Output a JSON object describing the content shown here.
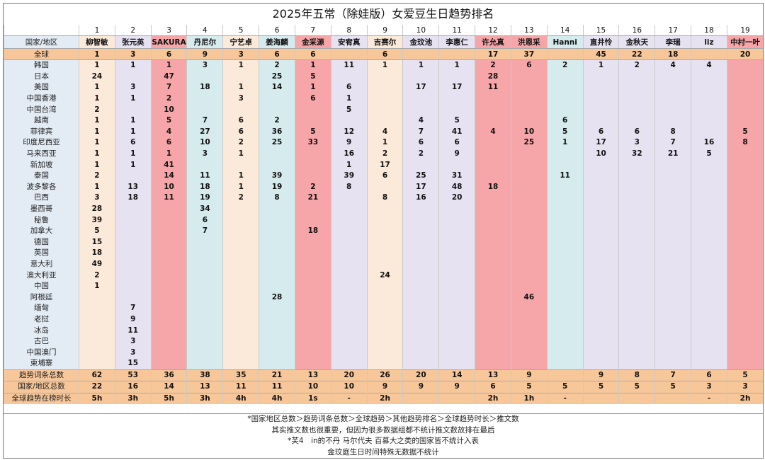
{
  "title": "2025年五常（除娃版）女爱豆生日趋势排名",
  "header_label": "国家/地区",
  "ranks": [
    "1",
    "2",
    "3",
    "4",
    "5",
    "6",
    "7",
    "8",
    "9",
    "10",
    "11",
    "12",
    "13",
    "14",
    "15",
    "16",
    "17",
    "18",
    "19"
  ],
  "idols": [
    "柳智敏",
    "张元英",
    "SAKURA",
    "丹尼尔",
    "宁艺卓",
    "姜海麟",
    "金采源",
    "安宥真",
    "吉赛尔",
    "金玟池",
    "李惠仁",
    "许允真",
    "洪恩采",
    "Hanni",
    "直井怜",
    "金秋天",
    "李瑞",
    "liz",
    "中村一叶"
  ],
  "colors": {
    "peach": "#fbe9d9",
    "lavender": "#e7e2f1",
    "pink": "#f6a5a8",
    "teal": "#d6ebee",
    "orange": "#f7c79a",
    "label_blue": "#e3ecf5"
  },
  "global_row": {
    "label": "全球",
    "values": [
      "1",
      "3",
      "6",
      "9",
      "3",
      "6",
      "6",
      "",
      "6",
      "",
      "",
      "17",
      "37",
      "",
      "45",
      "22",
      "18",
      "",
      "20"
    ]
  },
  "countries": [
    {
      "label": "韩国",
      "values": [
        "1",
        "1",
        "1",
        "3",
        "1",
        "2",
        "1",
        "11",
        "1",
        "1",
        "1",
        "2",
        "6",
        "2",
        "1",
        "2",
        "4",
        "4",
        ""
      ]
    },
    {
      "label": "日本",
      "values": [
        "24",
        "",
        "47",
        "",
        "",
        "25",
        "5",
        "",
        "",
        "",
        "",
        "28",
        "",
        "",
        "",
        "",
        "",
        "",
        ""
      ]
    },
    {
      "label": "美国",
      "values": [
        "1",
        "3",
        "7",
        "18",
        "1",
        "14",
        "1",
        "6",
        "",
        "17",
        "17",
        "11",
        "",
        "",
        "",
        "",
        "",
        "",
        ""
      ]
    },
    {
      "label": "中国香港",
      "values": [
        "1",
        "1",
        "2",
        "",
        "3",
        "",
        "6",
        "1",
        "",
        "",
        "",
        "",
        "",
        "",
        "",
        "",
        "",
        "",
        ""
      ]
    },
    {
      "label": "中国台湾",
      "values": [
        "2",
        "",
        "10",
        "",
        "",
        "",
        "",
        "5",
        "",
        "",
        "",
        "",
        "",
        "",
        "",
        "",
        "",
        "",
        ""
      ]
    },
    {
      "label": "越南",
      "values": [
        "1",
        "1",
        "5",
        "7",
        "6",
        "2",
        "",
        "",
        "",
        "4",
        "5",
        "",
        "",
        "6",
        "",
        "",
        "",
        "",
        ""
      ]
    },
    {
      "label": "菲律宾",
      "values": [
        "1",
        "1",
        "4",
        "27",
        "6",
        "36",
        "5",
        "12",
        "4",
        "7",
        "41",
        "4",
        "10",
        "5",
        "6",
        "6",
        "8",
        "",
        "5"
      ]
    },
    {
      "label": "印度尼西亚",
      "values": [
        "1",
        "6",
        "6",
        "10",
        "2",
        "25",
        "33",
        "9",
        "1",
        "6",
        "6",
        "",
        "25",
        "1",
        "17",
        "3",
        "7",
        "16",
        "8"
      ]
    },
    {
      "label": "马来西亚",
      "values": [
        "1",
        "1",
        "1",
        "3",
        "1",
        "",
        "",
        "16",
        "2",
        "2",
        "9",
        "",
        "",
        "",
        "10",
        "32",
        "21",
        "5",
        ""
      ]
    },
    {
      "label": "新加坡",
      "values": [
        "1",
        "1",
        "41",
        "",
        "",
        "",
        "",
        "1",
        "17",
        "",
        "",
        "",
        "",
        "",
        "",
        "",
        "",
        "",
        ""
      ]
    },
    {
      "label": "泰国",
      "values": [
        "2",
        "",
        "14",
        "11",
        "1",
        "39",
        "",
        "39",
        "6",
        "25",
        "31",
        "",
        "",
        "11",
        "",
        "",
        "",
        "",
        ""
      ]
    },
    {
      "label": "波多黎各",
      "values": [
        "1",
        "13",
        "10",
        "18",
        "1",
        "19",
        "2",
        "8",
        "",
        "17",
        "48",
        "18",
        "",
        "",
        "",
        "",
        "",
        "",
        ""
      ]
    },
    {
      "label": "巴西",
      "values": [
        "3",
        "18",
        "11",
        "19",
        "2",
        "8",
        "21",
        "",
        "8",
        "16",
        "20",
        "",
        "",
        "",
        "",
        "",
        "",
        "",
        ""
      ]
    },
    {
      "label": "墨西哥",
      "values": [
        "28",
        "",
        "",
        "34",
        "",
        "",
        "",
        "",
        "",
        "",
        "",
        "",
        "",
        "",
        "",
        "",
        "",
        "",
        ""
      ]
    },
    {
      "label": "秘鲁",
      "values": [
        "39",
        "",
        "",
        "6",
        "",
        "",
        "",
        "",
        "",
        "",
        "",
        "",
        "",
        "",
        "",
        "",
        "",
        "",
        ""
      ]
    },
    {
      "label": "加拿大",
      "values": [
        "5",
        "",
        "",
        "7",
        "",
        "",
        "18",
        "",
        "",
        "",
        "",
        "",
        "",
        "",
        "",
        "",
        "",
        "",
        ""
      ]
    },
    {
      "label": "德国",
      "values": [
        "15",
        "",
        "",
        "",
        "",
        "",
        "",
        "",
        "",
        "",
        "",
        "",
        "",
        "",
        "",
        "",
        "",
        "",
        ""
      ]
    },
    {
      "label": "英国",
      "values": [
        "18",
        "",
        "",
        "",
        "",
        "",
        "",
        "",
        "",
        "",
        "",
        "",
        "",
        "",
        "",
        "",
        "",
        "",
        ""
      ]
    },
    {
      "label": "意大利",
      "values": [
        "49",
        "",
        "",
        "",
        "",
        "",
        "",
        "",
        "",
        "",
        "",
        "",
        "",
        "",
        "",
        "",
        "",
        "",
        ""
      ]
    },
    {
      "label": "澳大利亚",
      "values": [
        "2",
        "",
        "",
        "",
        "",
        "",
        "",
        "",
        "24",
        "",
        "",
        "",
        "",
        "",
        "",
        "",
        "",
        "",
        ""
      ]
    },
    {
      "label": "中国",
      "values": [
        "1",
        "",
        "",
        "",
        "",
        "",
        "",
        "",
        "",
        "",
        "",
        "",
        "",
        "",
        "",
        "",
        "",
        "",
        ""
      ]
    },
    {
      "label": "阿根廷",
      "values": [
        "",
        "",
        "",
        "",
        "",
        "28",
        "",
        "",
        "",
        "",
        "",
        "",
        "46",
        "",
        "",
        "",
        "",
        "",
        ""
      ]
    },
    {
      "label": "缅甸",
      "values": [
        "",
        "7",
        "",
        "",
        "",
        "",
        "",
        "",
        "",
        "",
        "",
        "",
        "",
        "",
        "",
        "",
        "",
        "",
        ""
      ]
    },
    {
      "label": "老挝",
      "values": [
        "",
        "9",
        "",
        "",
        "",
        "",
        "",
        "",
        "",
        "",
        "",
        "",
        "",
        "",
        "",
        "",
        "",
        "",
        ""
      ]
    },
    {
      "label": "冰岛",
      "values": [
        "",
        "11",
        "",
        "",
        "",
        "",
        "",
        "",
        "",
        "",
        "",
        "",
        "",
        "",
        "",
        "",
        "",
        "",
        ""
      ]
    },
    {
      "label": "古巴",
      "values": [
        "",
        "3",
        "",
        "",
        "",
        "",
        "",
        "",
        "",
        "",
        "",
        "",
        "",
        "",
        "",
        "",
        "",
        "",
        ""
      ]
    },
    {
      "label": "中国澳门",
      "values": [
        "",
        "3",
        "",
        "",
        "",
        "",
        "",
        "",
        "",
        "",
        "",
        "",
        "",
        "",
        "",
        "",
        "",
        "",
        ""
      ]
    },
    {
      "label": "柬埔寨",
      "values": [
        "",
        "15",
        "",
        "",
        "",
        "",
        "",
        "",
        "",
        "",
        "",
        "",
        "",
        "",
        "",
        "",
        "",
        "",
        ""
      ]
    }
  ],
  "summary_rows": [
    {
      "label": "趋势词条总数",
      "values": [
        "62",
        "53",
        "36",
        "38",
        "35",
        "21",
        "13",
        "20",
        "26",
        "20",
        "14",
        "13",
        "9",
        "",
        "9",
        "8",
        "7",
        "6",
        "5"
      ]
    },
    {
      "label": "国家/地区总数",
      "values": [
        "22",
        "16",
        "14",
        "13",
        "11",
        "11",
        "10",
        "10",
        "9",
        "9",
        "9",
        "6",
        "5",
        "5",
        "5",
        "5",
        "5",
        "3",
        "3"
      ]
    },
    {
      "label": "全球趋势在榜时长",
      "values": [
        "5h",
        "3h",
        "5h",
        "3h",
        "4h",
        "4h",
        "1s",
        "-",
        "2h",
        "",
        "",
        "2h",
        "1h",
        "-",
        "",
        "",
        "",
        "-",
        "2h"
      ]
    }
  ],
  "notes": [
    "*国家地区总数＞趋势词条总数＞全球趋势＞其他趋势排名＞全球趋势时长＞推文数",
    "其实推文数也很重要，但因为很多数据组都不统计推文数故排在最后",
    "*芙4　in的不丹 马尔代夫 百慕大之类的国家皆不统计入表",
    "金玟庭生日时间特殊无数据不统计"
  ]
}
